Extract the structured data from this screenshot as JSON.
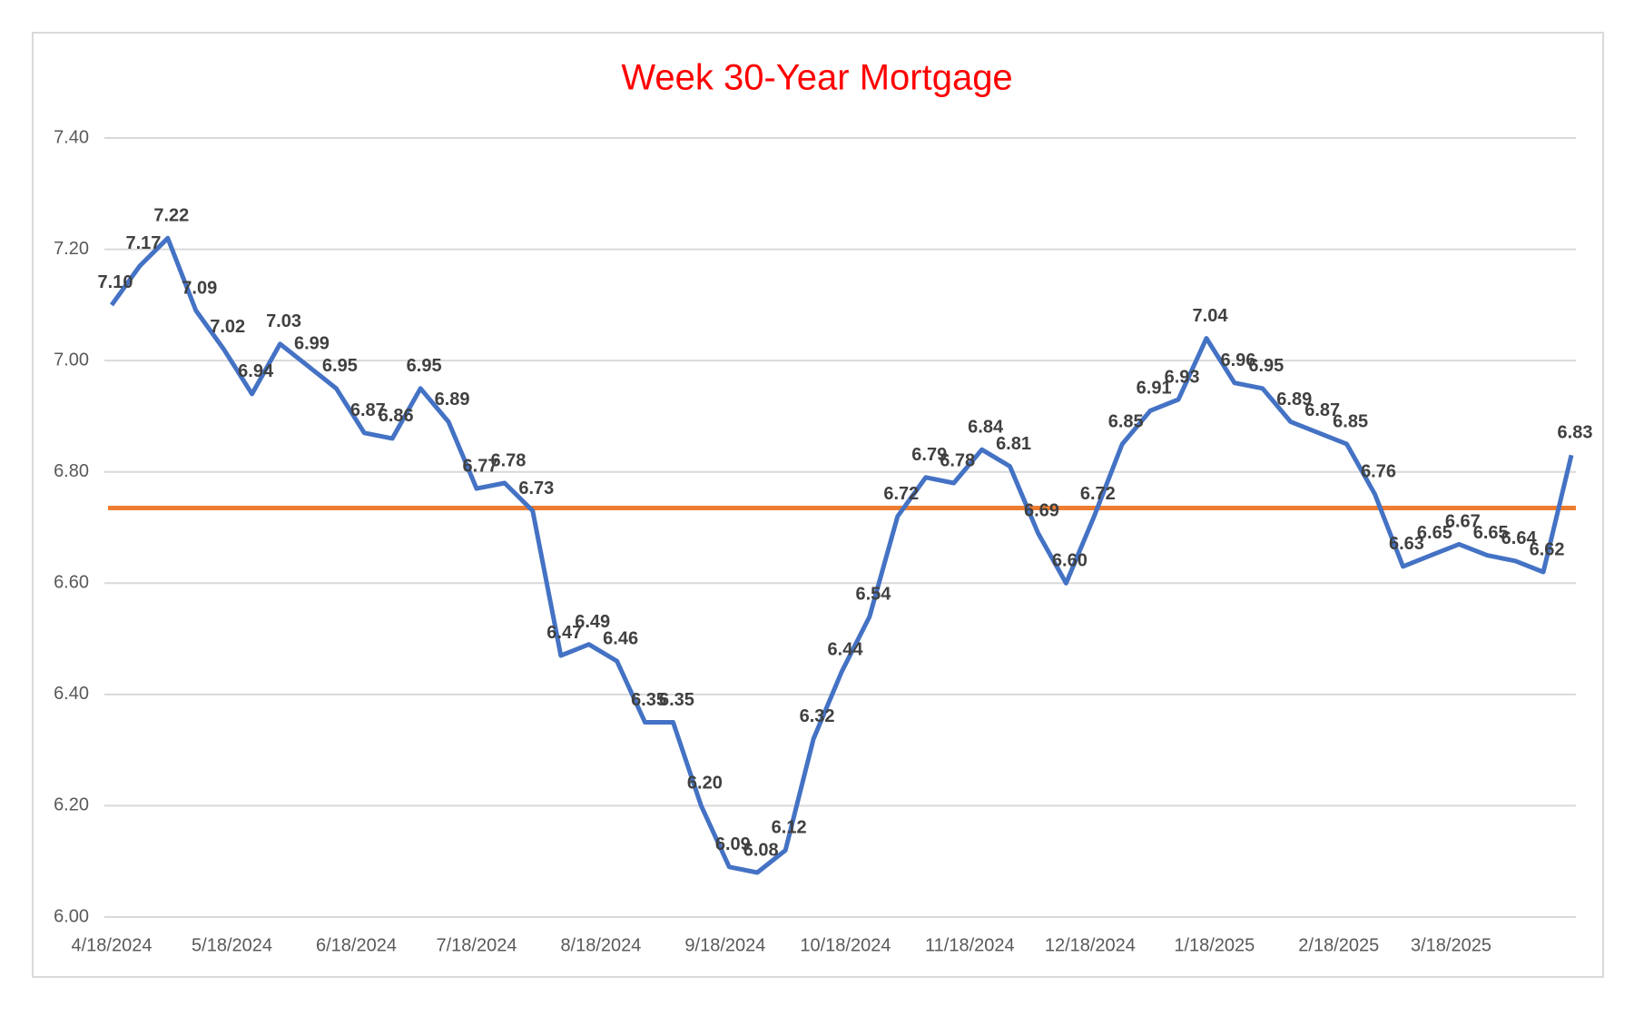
{
  "chart_data": {
    "type": "line",
    "title": "Week 30-Year Mortgage",
    "x": [
      "4/18/2024",
      "4/25/2024",
      "5/2/2024",
      "5/9/2024",
      "5/16/2024",
      "5/23/2024",
      "5/30/2024",
      "6/6/2024",
      "6/13/2024",
      "6/20/2024",
      "6/27/2024",
      "7/4/2024",
      "7/11/2024",
      "7/18/2024",
      "7/25/2024",
      "8/1/2024",
      "8/8/2024",
      "8/15/2024",
      "8/22/2024",
      "8/29/2024",
      "9/5/2024",
      "9/12/2024",
      "9/19/2024",
      "9/26/2024",
      "10/3/2024",
      "10/10/2024",
      "10/17/2024",
      "10/24/2024",
      "10/31/2024",
      "11/7/2024",
      "11/14/2024",
      "11/21/2024",
      "11/28/2024",
      "12/5/2024",
      "12/12/2024",
      "12/19/2024",
      "12/26/2024",
      "1/2/2025",
      "1/9/2025",
      "1/16/2025",
      "1/23/2025",
      "1/30/2025",
      "2/6/2025",
      "2/13/2025",
      "2/20/2025",
      "2/27/2025",
      "3/6/2025",
      "3/13/2025",
      "3/20/2025",
      "3/27/2025",
      "4/3/2025",
      "4/10/2025",
      "4/17/2025"
    ],
    "series": [
      {
        "name": "30-Year Mortgage",
        "color": "#4472c4",
        "values": [
          7.1,
          7.17,
          7.22,
          7.09,
          7.02,
          6.94,
          7.03,
          6.99,
          6.95,
          6.87,
          6.86,
          6.95,
          6.89,
          6.77,
          6.78,
          6.73,
          6.47,
          6.49,
          6.46,
          6.35,
          6.35,
          6.2,
          6.09,
          6.08,
          6.12,
          6.32,
          6.44,
          6.54,
          6.72,
          6.79,
          6.78,
          6.84,
          6.81,
          6.69,
          6.6,
          6.72,
          6.85,
          6.91,
          6.93,
          7.04,
          6.96,
          6.95,
          6.89,
          6.87,
          6.85,
          6.76,
          6.63,
          6.65,
          6.67,
          6.65,
          6.64,
          6.62,
          6.83
        ],
        "value_labels": [
          "7.10",
          "7.17",
          "7.22",
          "7.09",
          "7.02",
          "6.94",
          "7.03",
          "6.99",
          "6.95",
          "6.87",
          "6.86",
          "6.95",
          "6.89",
          "6.77",
          "6.78",
          "6.73",
          "6.47",
          "6.49",
          "6.46",
          "6.35",
          "6.35",
          "6.20",
          "6.09",
          "6.08",
          "6.12",
          "6.32",
          "6.44",
          "6.54",
          "6.72",
          "6.79",
          "6.78",
          "6.84",
          "6.81",
          "6.69",
          "6.60",
          "6.72",
          "6.85",
          "6.91",
          "6.93",
          "7.04",
          "6.96",
          "6.95",
          "6.89",
          "6.87",
          "6.85",
          "6.76",
          "6.63",
          "6.65",
          "6.67",
          "6.65",
          "6.64",
          "6.62",
          "6.83"
        ]
      }
    ],
    "reference_line": {
      "value": 6.735,
      "color": "#ed7d31"
    },
    "xlim": [
      "4/18/2024",
      "4/17/2025"
    ],
    "xticks": [
      "4/18/2024",
      "5/18/2024",
      "6/18/2024",
      "7/18/2024",
      "8/18/2024",
      "9/18/2024",
      "10/18/2024",
      "11/18/2024",
      "12/18/2024",
      "1/18/2025",
      "2/18/2025",
      "3/18/2025"
    ],
    "ylim": [
      6.0,
      7.4
    ],
    "yticks": [
      {
        "value": 6.0,
        "label": "6.00"
      },
      {
        "value": 6.2,
        "label": "6.20"
      },
      {
        "value": 6.4,
        "label": "6.40"
      },
      {
        "value": 6.6,
        "label": "6.60"
      },
      {
        "value": 6.8,
        "label": "6.80"
      },
      {
        "value": 7.0,
        "label": "7.00"
      },
      {
        "value": 7.2,
        "label": "7.20"
      },
      {
        "value": 7.4,
        "label": "7.40"
      }
    ],
    "grid": true
  }
}
